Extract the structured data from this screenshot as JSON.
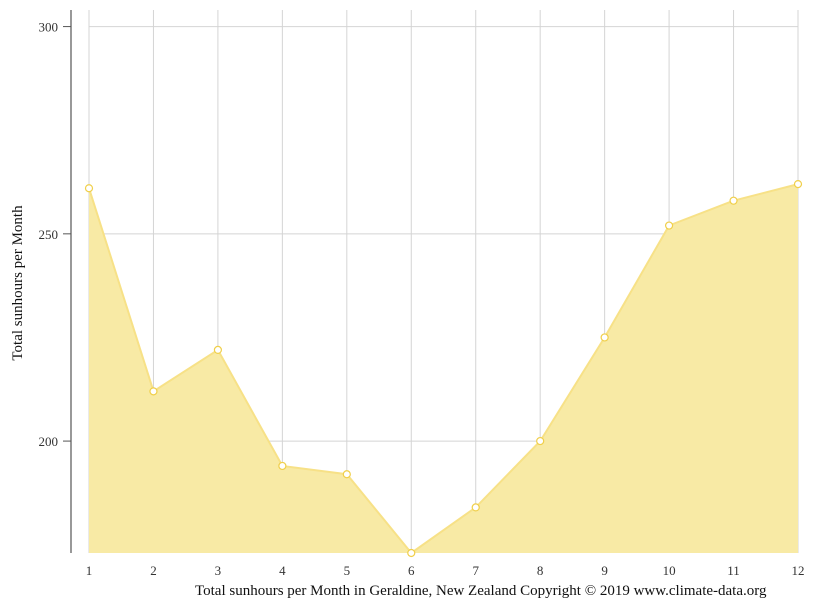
{
  "chart_data": {
    "type": "area",
    "x": [
      1,
      2,
      3,
      4,
      5,
      6,
      7,
      8,
      9,
      10,
      11,
      12
    ],
    "series": [
      {
        "values": [
          261,
          212,
          222,
          194,
          192,
          173,
          184,
          200,
          225,
          252,
          258,
          262
        ]
      }
    ],
    "ylabel": "Total sunhours per Month",
    "xlabel": "",
    "yticks": [
      200,
      250,
      300
    ],
    "ylim": [
      173,
      304
    ],
    "xlim": [
      1,
      12
    ],
    "grid": true,
    "colors": {
      "fill": "#f8eaa5",
      "line": "#f7e187",
      "marker_fill": "#ffffff",
      "marker_stroke": "#f0cf4a",
      "grid": "#d4d4d4",
      "axis": "#555555"
    }
  },
  "caption": "Total sunhours per Month in Geraldine, New Zealand Copyright © 2019 www.climate-data.org"
}
